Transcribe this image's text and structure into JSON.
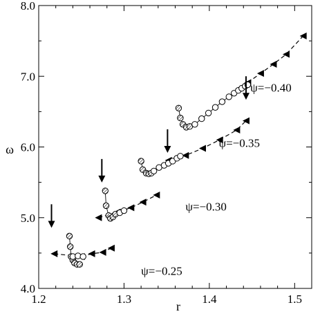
{
  "chart_data": {
    "type": "scatter",
    "title": "",
    "xlabel": "r",
    "ylabel": "ω",
    "xlim": [
      1.2,
      1.52
    ],
    "ylim": [
      4.0,
      8.0
    ],
    "xticks": [
      1.2,
      1.3,
      1.4,
      1.5
    ],
    "xtick_labels": [
      "1.2",
      "1.3",
      "1.4",
      "1.5"
    ],
    "yticks": [
      4.0,
      5.0,
      6.0,
      7.0,
      8.0
    ],
    "ytick_labels": [
      "4.0",
      "5.0",
      "6.0",
      "7.0",
      "8.0"
    ],
    "grid": false,
    "legend": "none",
    "groups": [
      {
        "name": "ψ=−0.25",
        "label": {
          "text": "ψ=−0.25",
          "x": 1.32,
          "y": 4.19
        },
        "arrow_x": 1.215,
        "dashed_triangles": [
          [
            1.218,
            4.49
          ],
          [
            1.25,
            4.45
          ],
          [
            1.262,
            4.49
          ],
          [
            1.275,
            4.51
          ],
          [
            1.285,
            4.57
          ]
        ],
        "shaded_circles": [
          [
            1.236,
            4.74
          ],
          [
            1.237,
            4.59
          ],
          [
            1.238,
            4.45
          ],
          [
            1.24,
            4.4
          ],
          [
            1.242,
            4.36
          ],
          [
            1.245,
            4.34
          ],
          [
            1.248,
            4.34
          ]
        ],
        "open_circles": [
          [
            1.24,
            4.45
          ],
          [
            1.246,
            4.46
          ],
          [
            1.252,
            4.45
          ]
        ]
      },
      {
        "name": "ψ=−0.30",
        "label": {
          "text": "ψ=−0.30",
          "x": 1.372,
          "y": 5.1
        },
        "arrow_x": 1.274,
        "dashed_triangles": [
          [
            1.27,
            5.0
          ],
          [
            1.292,
            5.08
          ],
          [
            1.308,
            5.14
          ],
          [
            1.322,
            5.22
          ],
          [
            1.338,
            5.32
          ]
        ],
        "shaded_circles": [
          [
            1.278,
            5.38
          ],
          [
            1.279,
            5.17
          ],
          [
            1.282,
            5.03
          ],
          [
            1.284,
            4.99
          ],
          [
            1.287,
            5.01
          ],
          [
            1.29,
            5.05
          ]
        ],
        "open_circles": [
          [
            1.295,
            5.07
          ],
          [
            1.3,
            5.1
          ]
        ]
      },
      {
        "name": "ψ=−0.35",
        "label": {
          "text": "ψ=−0.35",
          "x": 1.411,
          "y": 6.0
        },
        "arrow_x": 1.351,
        "dashed_triangles": [
          [
            1.352,
            5.81
          ],
          [
            1.372,
            5.88
          ],
          [
            1.392,
            5.98
          ],
          [
            1.412,
            6.1
          ],
          [
            1.432,
            6.24
          ],
          [
            1.443,
            6.37
          ]
        ],
        "shaded_circles": [
          [
            1.32,
            5.8
          ],
          [
            1.322,
            5.68
          ],
          [
            1.326,
            5.63
          ],
          [
            1.329,
            5.62
          ],
          [
            1.332,
            5.63
          ]
        ],
        "open_circles": [
          [
            1.335,
            5.66
          ],
          [
            1.341,
            5.71
          ],
          [
            1.347,
            5.74
          ],
          [
            1.352,
            5.77
          ],
          [
            1.357,
            5.8
          ],
          [
            1.362,
            5.84
          ],
          [
            1.366,
            5.87
          ]
        ]
      },
      {
        "name": "ψ=−0.40",
        "label": {
          "text": "ψ=−0.40",
          "x": 1.448,
          "y": 6.78
        },
        "arrow_x": 1.443,
        "dashed_triangles": [
          [
            1.445,
            6.91
          ],
          [
            1.46,
            7.04
          ],
          [
            1.475,
            7.17
          ],
          [
            1.49,
            7.31
          ],
          [
            1.51,
            7.57
          ]
        ],
        "shaded_circles": [
          [
            1.364,
            6.55
          ],
          [
            1.366,
            6.41
          ],
          [
            1.369,
            6.32
          ],
          [
            1.373,
            6.28
          ],
          [
            1.377,
            6.29
          ]
        ],
        "open_circles": [
          [
            1.383,
            6.32
          ],
          [
            1.391,
            6.4
          ],
          [
            1.399,
            6.48
          ],
          [
            1.407,
            6.56
          ],
          [
            1.415,
            6.64
          ],
          [
            1.423,
            6.71
          ],
          [
            1.429,
            6.76
          ],
          [
            1.434,
            6.8
          ],
          [
            1.438,
            6.83
          ],
          [
            1.442,
            6.86
          ],
          [
            1.445,
            6.88
          ]
        ]
      }
    ]
  }
}
